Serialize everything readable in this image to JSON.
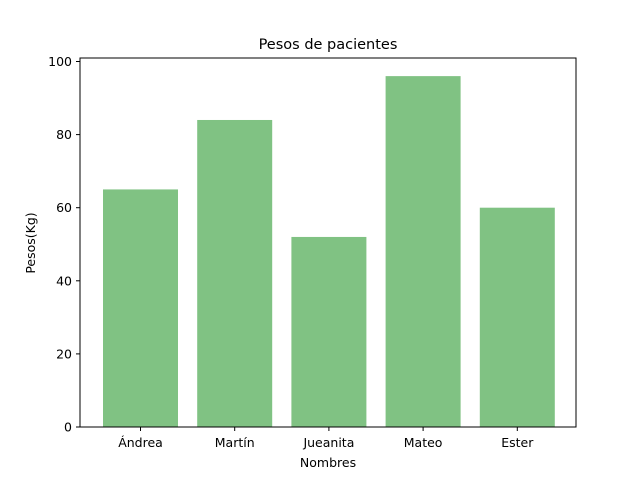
{
  "chart_data": {
    "type": "bar",
    "title": "Pesos de pacientes",
    "xlabel": "Nombres",
    "ylabel": "Pesos(Kg)",
    "categories": [
      "Ándrea",
      "Martín",
      "Jueanita",
      "Mateo",
      "Ester"
    ],
    "values": [
      65,
      84,
      52,
      96,
      60
    ],
    "ylim": [
      0,
      100
    ],
    "yticks": [
      0,
      20,
      40,
      60,
      80,
      100
    ],
    "grid": false,
    "legend": "none",
    "bar_color": "#80c283"
  }
}
